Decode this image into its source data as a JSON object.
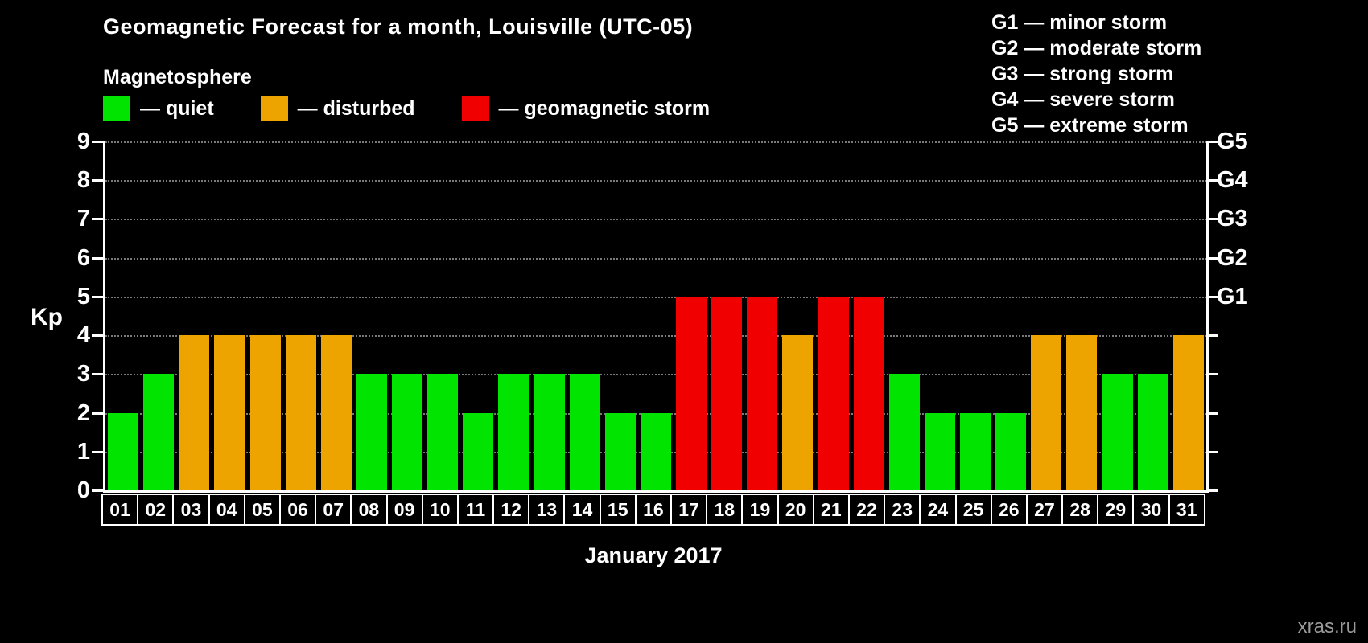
{
  "title": "Geomagnetic Forecast for a month, Louisville (UTC-05)",
  "subtitle": "Magnetosphere",
  "legend": [
    {
      "key": "quiet",
      "label": "— quiet",
      "color": "#00e400"
    },
    {
      "key": "disturbed",
      "label": "— disturbed",
      "color": "#eda400"
    },
    {
      "key": "storm",
      "label": "— geomagnetic storm",
      "color": "#f00000"
    }
  ],
  "g_legend": [
    "G1 — minor storm",
    "G2 — moderate storm",
    "G3 — strong storm",
    "G4 — severe storm",
    "G5 — extreme storm"
  ],
  "watermark": "xras.ru",
  "chart_data": {
    "type": "bar",
    "title": "Geomagnetic Forecast for a month, Louisville (UTC-05)",
    "xlabel": "January 2017",
    "ylabel": "Kp",
    "ylim": [
      0,
      9
    ],
    "yticks": [
      0,
      1,
      2,
      3,
      4,
      5,
      6,
      7,
      8,
      9
    ],
    "grid": "dotted-horizontal",
    "right_axis": [
      {
        "label": "G1",
        "value": 5
      },
      {
        "label": "G2",
        "value": 6
      },
      {
        "label": "G3",
        "value": 7
      },
      {
        "label": "G4",
        "value": 8
      },
      {
        "label": "G5",
        "value": 9
      }
    ],
    "categories": [
      "01",
      "02",
      "03",
      "04",
      "05",
      "06",
      "07",
      "08",
      "09",
      "10",
      "11",
      "12",
      "13",
      "14",
      "15",
      "16",
      "17",
      "18",
      "19",
      "20",
      "21",
      "22",
      "23",
      "24",
      "25",
      "26",
      "27",
      "28",
      "29",
      "30",
      "31"
    ],
    "values": [
      2,
      3,
      4,
      4,
      4,
      4,
      4,
      3,
      3,
      3,
      2,
      3,
      3,
      3,
      2,
      2,
      5,
      5,
      5,
      4,
      5,
      5,
      3,
      2,
      2,
      2,
      4,
      4,
      3,
      3,
      4
    ],
    "statuses": [
      "quiet",
      "quiet",
      "disturbed",
      "disturbed",
      "disturbed",
      "disturbed",
      "disturbed",
      "quiet",
      "quiet",
      "quiet",
      "quiet",
      "quiet",
      "quiet",
      "quiet",
      "quiet",
      "quiet",
      "storm",
      "storm",
      "storm",
      "disturbed",
      "storm",
      "storm",
      "quiet",
      "quiet",
      "quiet",
      "quiet",
      "disturbed",
      "disturbed",
      "quiet",
      "quiet",
      "disturbed"
    ],
    "status_colors": {
      "quiet": "#00e400",
      "disturbed": "#eda400",
      "storm": "#f00000"
    }
  }
}
